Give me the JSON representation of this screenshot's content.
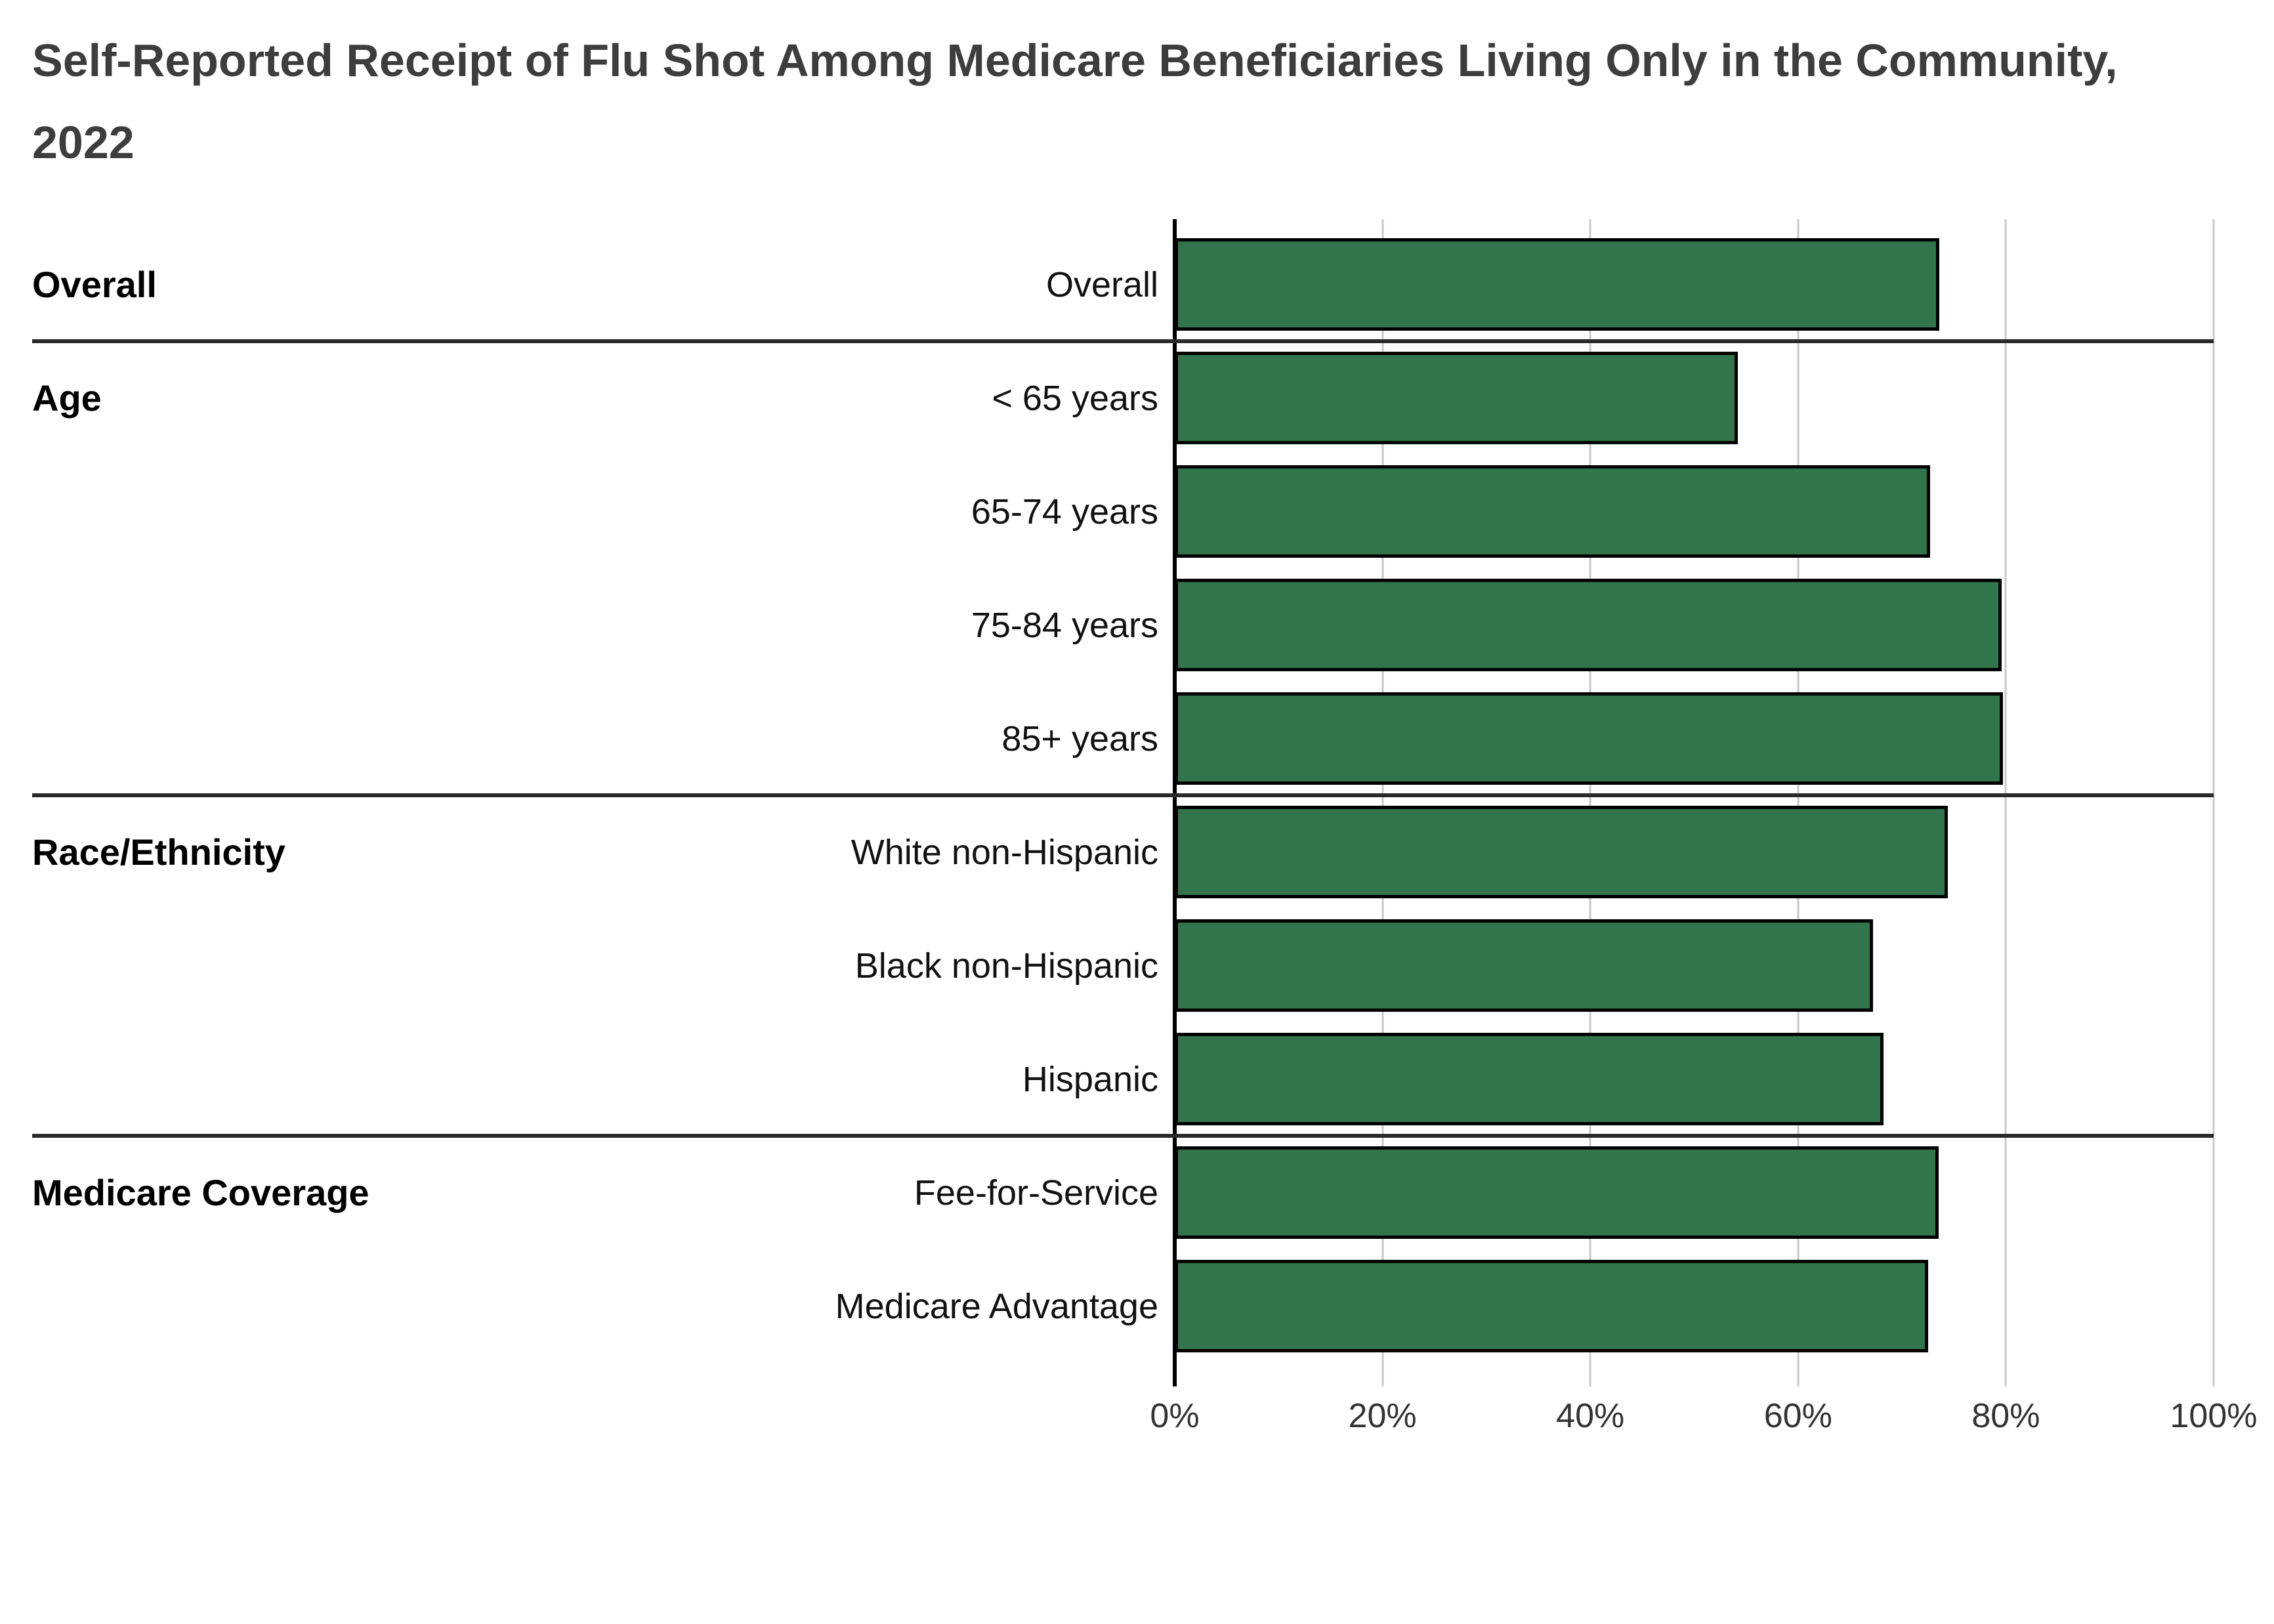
{
  "title": {
    "text": "Self-Reported Receipt of Flu Shot Among Medicare Beneficiaries Living Only in the Community, 2022"
  },
  "colors": {
    "bar_fill": "#32744b",
    "bar_border": "#000000",
    "gridline": "#c8c8c8",
    "zero_axis": "#000000",
    "section_divider": "#2a2a2a",
    "title_text": "#3d3d3d",
    "category_text": "#111111",
    "tick_text": "#333333",
    "background": "#ffffff"
  },
  "chart_data": {
    "type": "bar",
    "orientation": "horizontal",
    "title": "Self-Reported Receipt of Flu Shot Among Medicare Beneficiaries Living Only in the Community, 2022",
    "xlabel": "",
    "ylabel": "",
    "value_unit": "%",
    "xlim": [
      0,
      100
    ],
    "x_tick_labels": [
      "0%",
      "20%",
      "40%",
      "60%",
      "80%",
      "100%"
    ],
    "x_tick_values": [
      0,
      20,
      40,
      60,
      80,
      100
    ],
    "grid": true,
    "legend": false,
    "sections": [
      {
        "group": "Overall",
        "rows": [
          {
            "label": "Overall",
            "value": 73.6
          }
        ]
      },
      {
        "group": "Age",
        "rows": [
          {
            "label": "< 65 years",
            "value": 54.2
          },
          {
            "label": "65-74 years",
            "value": 72.7
          },
          {
            "label": "75-84 years",
            "value": 79.6
          },
          {
            "label": "85+ years",
            "value": 79.7
          }
        ]
      },
      {
        "group": "Race/Ethnicity",
        "rows": [
          {
            "label": "White non-Hispanic",
            "value": 74.4
          },
          {
            "label": "Black non-Hispanic",
            "value": 67.2
          },
          {
            "label": "Hispanic",
            "value": 68.2
          }
        ]
      },
      {
        "group": "Medicare Coverage",
        "rows": [
          {
            "label": "Fee-for-Service",
            "value": 73.5
          },
          {
            "label": "Medicare Advantage",
            "value": 72.5
          }
        ]
      }
    ]
  }
}
